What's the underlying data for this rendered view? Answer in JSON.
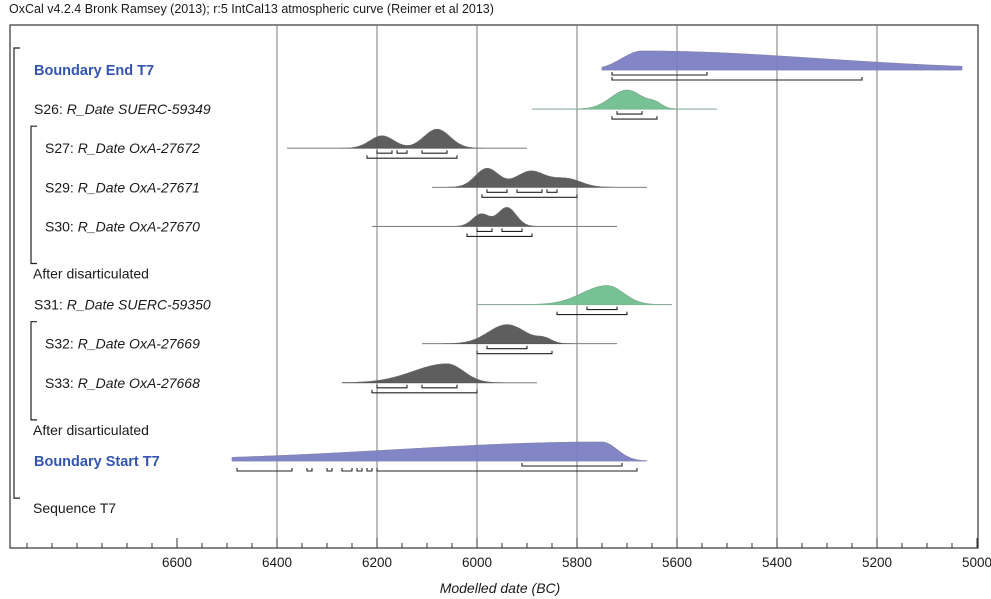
{
  "header": "OxCal v4.2.4 Bronk Ramsey (2013); r:5 IntCal13 atmospheric curve (Reimer et al 2013)",
  "colors": {
    "blue": "#7b7fc4",
    "green": "#6fbf8f",
    "gray": "#555555",
    "label_blue": "#3355b0"
  },
  "chart_data": {
    "type": "bar",
    "title": "",
    "xlabel": "Modelled date (BC)",
    "ylabel": "",
    "xlim": [
      6900,
      5000
    ],
    "x_reversed": true,
    "xticks": [
      6600,
      6400,
      6200,
      6000,
      5800,
      5600,
      5400,
      5200,
      5000
    ],
    "grid_x": [
      6400,
      6200,
      6000,
      5800,
      5600,
      5400,
      5200
    ],
    "minor_tick_step": 50,
    "rows": [
      {
        "prefix": "",
        "label": "Boundary End T7",
        "style": "boundary",
        "color": "blue",
        "range": [
          5750,
          5030
        ],
        "peak": 5670,
        "spread": [
          5760,
          5030
        ],
        "shape": "skew-late",
        "hpd68": [
          [
            5730,
            5540
          ]
        ],
        "hpd95": [
          [
            5730,
            5230
          ]
        ]
      },
      {
        "prefix": "S26: ",
        "label": "R_Date SUERC-59349",
        "style": "date",
        "color": "green",
        "range": [
          5890,
          5520
        ],
        "peak": 5700,
        "spread": [
          5760,
          5630
        ],
        "shape": "plateau",
        "hpd68": [
          [
            5720,
            5670
          ]
        ],
        "hpd95": [
          [
            5730,
            5640
          ]
        ]
      },
      {
        "prefix": "S27: ",
        "label": "R_Date OxA-27672",
        "style": "date",
        "color": "gray",
        "indent": true,
        "range": [
          6380,
          5900
        ],
        "peak": 6080,
        "spread": [
          6230,
          6030
        ],
        "shape": "double",
        "hpd68": [
          [
            6200,
            6170
          ],
          [
            6160,
            6140
          ],
          [
            6110,
            6060
          ]
        ],
        "hpd95": [
          [
            6220,
            6040
          ]
        ]
      },
      {
        "prefix": "S29: ",
        "label": "R_Date OxA-27671",
        "style": "date",
        "color": "gray",
        "indent": true,
        "range": [
          6090,
          5660
        ],
        "peak": 5980,
        "spread": [
          6030,
          5740
        ],
        "shape": "multi",
        "hpd68": [
          [
            5980,
            5940
          ],
          [
            5920,
            5870
          ],
          [
            5860,
            5840
          ]
        ],
        "hpd95": [
          [
            5990,
            5800
          ]
        ]
      },
      {
        "prefix": "S30: ",
        "label": "R_Date OxA-27670",
        "style": "date",
        "color": "gray",
        "indent": true,
        "range": [
          6210,
          5720
        ],
        "peak": 5940,
        "spread": [
          6020,
          5880
        ],
        "shape": "double",
        "hpd68": [
          [
            6000,
            5970
          ],
          [
            5950,
            5910
          ]
        ],
        "hpd95": [
          [
            6020,
            5890
          ]
        ]
      },
      {
        "prefix": "",
        "label": "After disarticulated",
        "style": "plain"
      },
      {
        "prefix": "S31: ",
        "label": "R_Date SUERC-59350",
        "style": "date",
        "color": "green",
        "range": [
          6000,
          5610
        ],
        "peak": 5740,
        "spread": [
          5850,
          5680
        ],
        "shape": "skew-late",
        "hpd68": [
          [
            5780,
            5720
          ]
        ],
        "hpd95": [
          [
            5840,
            5700
          ]
        ]
      },
      {
        "prefix": "S32: ",
        "label": "R_Date OxA-27669",
        "style": "date",
        "color": "gray",
        "indent": true,
        "range": [
          6110,
          5720
        ],
        "peak": 5940,
        "spread": [
          6000,
          5850
        ],
        "shape": "plateau",
        "hpd68": [
          [
            5980,
            5900
          ]
        ],
        "hpd95": [
          [
            6000,
            5850
          ]
        ]
      },
      {
        "prefix": "S33: ",
        "label": "R_Date OxA-27668",
        "style": "date",
        "color": "gray",
        "indent": true,
        "range": [
          6270,
          5880
        ],
        "peak": 6060,
        "spread": [
          6210,
          6000
        ],
        "shape": "skew-late",
        "hpd68": [
          [
            6200,
            6140
          ],
          [
            6110,
            6040
          ]
        ],
        "hpd95": [
          [
            6210,
            6000
          ]
        ]
      },
      {
        "prefix": "",
        "label": "After disarticulated",
        "style": "plain"
      },
      {
        "prefix": "",
        "label": "Boundary Start T7",
        "style": "boundary",
        "color": "blue",
        "range": [
          6490,
          5660
        ],
        "peak": 5750,
        "spread": [
          6490,
          5700
        ],
        "shape": "skew-early",
        "hpd68": [
          [
            5910,
            5710
          ]
        ],
        "hpd95": [
          [
            6480,
            6370
          ],
          [
            6340,
            6330
          ],
          [
            6300,
            6290
          ],
          [
            6270,
            6250
          ],
          [
            6240,
            6230
          ],
          [
            6220,
            6210
          ],
          [
            6200,
            5680
          ]
        ]
      },
      {
        "prefix": "",
        "label": "Sequence T7",
        "style": "plain"
      }
    ],
    "brackets": [
      {
        "from": 0,
        "to": 11,
        "level": 0
      },
      {
        "from": 2,
        "to": 5,
        "level": 1
      },
      {
        "from": 7,
        "to": 9,
        "level": 1
      }
    ]
  }
}
